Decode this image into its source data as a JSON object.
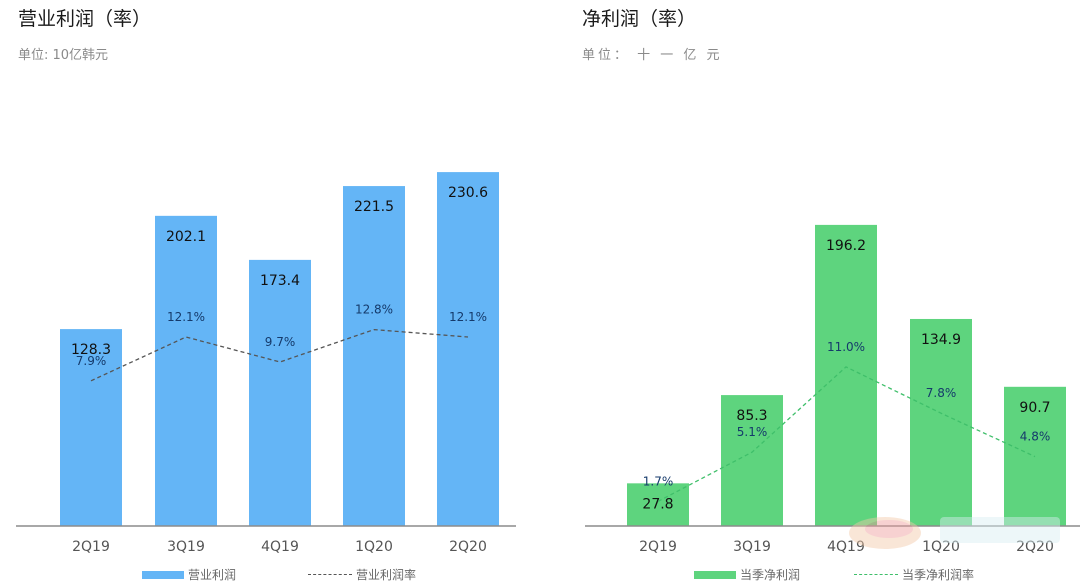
{
  "colors": {
    "left_bar": "#64b5f6",
    "right_bar": "#5ed47e",
    "left_line": "#555555",
    "right_line": "#3fbf6a",
    "axis": "#8c8c8c"
  },
  "left": {
    "title": "营业利润（率）",
    "subtitle": "单位: 10亿韩元",
    "legend_bar": "营业利润",
    "legend_line": "营业利润率"
  },
  "right": {
    "title": "净利润（率）",
    "subtitle": "单位： 十 一 亿 元",
    "legend_bar": "当季净利润",
    "legend_line": "当季净利润率"
  },
  "chart_data": [
    {
      "type": "bar",
      "title": "营业利润（率）",
      "categories": [
        "2Q19",
        "3Q19",
        "4Q19",
        "1Q20",
        "2Q20"
      ],
      "series": [
        {
          "name": "营业利润",
          "type": "bar",
          "values": [
            128.3,
            202.1,
            173.4,
            221.5,
            230.6
          ],
          "labels": [
            "128.3",
            "202.1",
            "173.4",
            "221.5",
            "230.6"
          ]
        },
        {
          "name": "营业利润率",
          "type": "line",
          "values": [
            7.9,
            12.1,
            9.7,
            12.8,
            12.1
          ],
          "labels": [
            "7.9%",
            "12.1%",
            "9.7%",
            "12.8%",
            "12.1%"
          ]
        }
      ],
      "ylim": [
        0,
        245
      ],
      "line_ylim": [
        -6,
        30
      ],
      "grid": false,
      "legend": "bottom"
    },
    {
      "type": "bar",
      "title": "净利润（率）",
      "categories": [
        "2Q19",
        "3Q19",
        "4Q19",
        "1Q20",
        "2Q20"
      ],
      "series": [
        {
          "name": "当季净利润",
          "type": "bar",
          "values": [
            27.8,
            85.3,
            196.2,
            134.9,
            90.7
          ],
          "labels": [
            "27.8",
            "85.3",
            "196.2",
            "134.9",
            "90.7"
          ]
        },
        {
          "name": "当季净利润率",
          "type": "line",
          "values": [
            1.7,
            5.1,
            11.0,
            7.8,
            4.8
          ],
          "labels": [
            "1.7%",
            "5.1%",
            "11.0%",
            "7.8%",
            "4.8%"
          ]
        }
      ],
      "ylim": [
        0,
        245
      ],
      "line_ylim": [
        0,
        26
      ],
      "grid": false,
      "legend": "bottom"
    }
  ]
}
